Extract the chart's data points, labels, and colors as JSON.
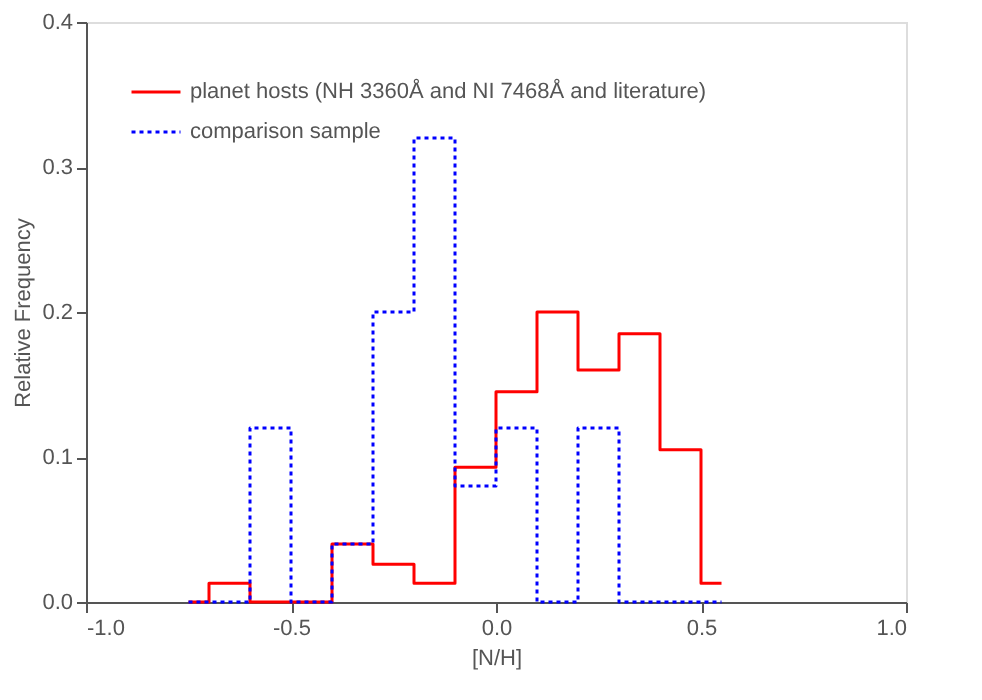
{
  "chart_data": {
    "type": "histogram",
    "xlabel": "[N/H]",
    "ylabel": "Relative Frequency",
    "xlim": [
      -1.0,
      1.0
    ],
    "xticks": [
      {
        "value": -1,
        "label": "-1.0"
      },
      {
        "value": -0.5,
        "label": "-0.5"
      },
      {
        "value": 0,
        "label": "0.0"
      },
      {
        "value": 0.5,
        "label": "0.5"
      },
      {
        "value": 1,
        "label": "1.0"
      }
    ],
    "ylim": [
      0,
      0.4
    ],
    "yticks": [
      {
        "value": 0,
        "label": "0.0"
      },
      0.1,
      0.2,
      0.3,
      0.4
    ],
    "bins": [
      -0.75,
      -0.7,
      -0.6,
      -0.5,
      -0.4,
      -0.3,
      -0.2,
      -0.1,
      0.0,
      0.1,
      0.2,
      0.3,
      0.4,
      0.5,
      0.55
    ],
    "series": [
      {
        "name": "planet hosts (NH 3360Å and NI 7468Å and literature)",
        "color": "#ff0000",
        "line_style": "solid",
        "values": [
          0,
          0.013,
          0,
          0,
          0.04,
          0.026,
          0.013,
          0.093,
          0.145,
          0.2,
          0.16,
          0.185,
          0.105,
          0.013
        ]
      },
      {
        "name": "comparison sample",
        "color": "#0000ff",
        "line_style": "dotted",
        "values": [
          0,
          0,
          0.12,
          0,
          0.04,
          0.2,
          0.32,
          0.08,
          0.12,
          0,
          0.12,
          0,
          0,
          0
        ]
      }
    ],
    "legend": "top left",
    "grid": false
  }
}
